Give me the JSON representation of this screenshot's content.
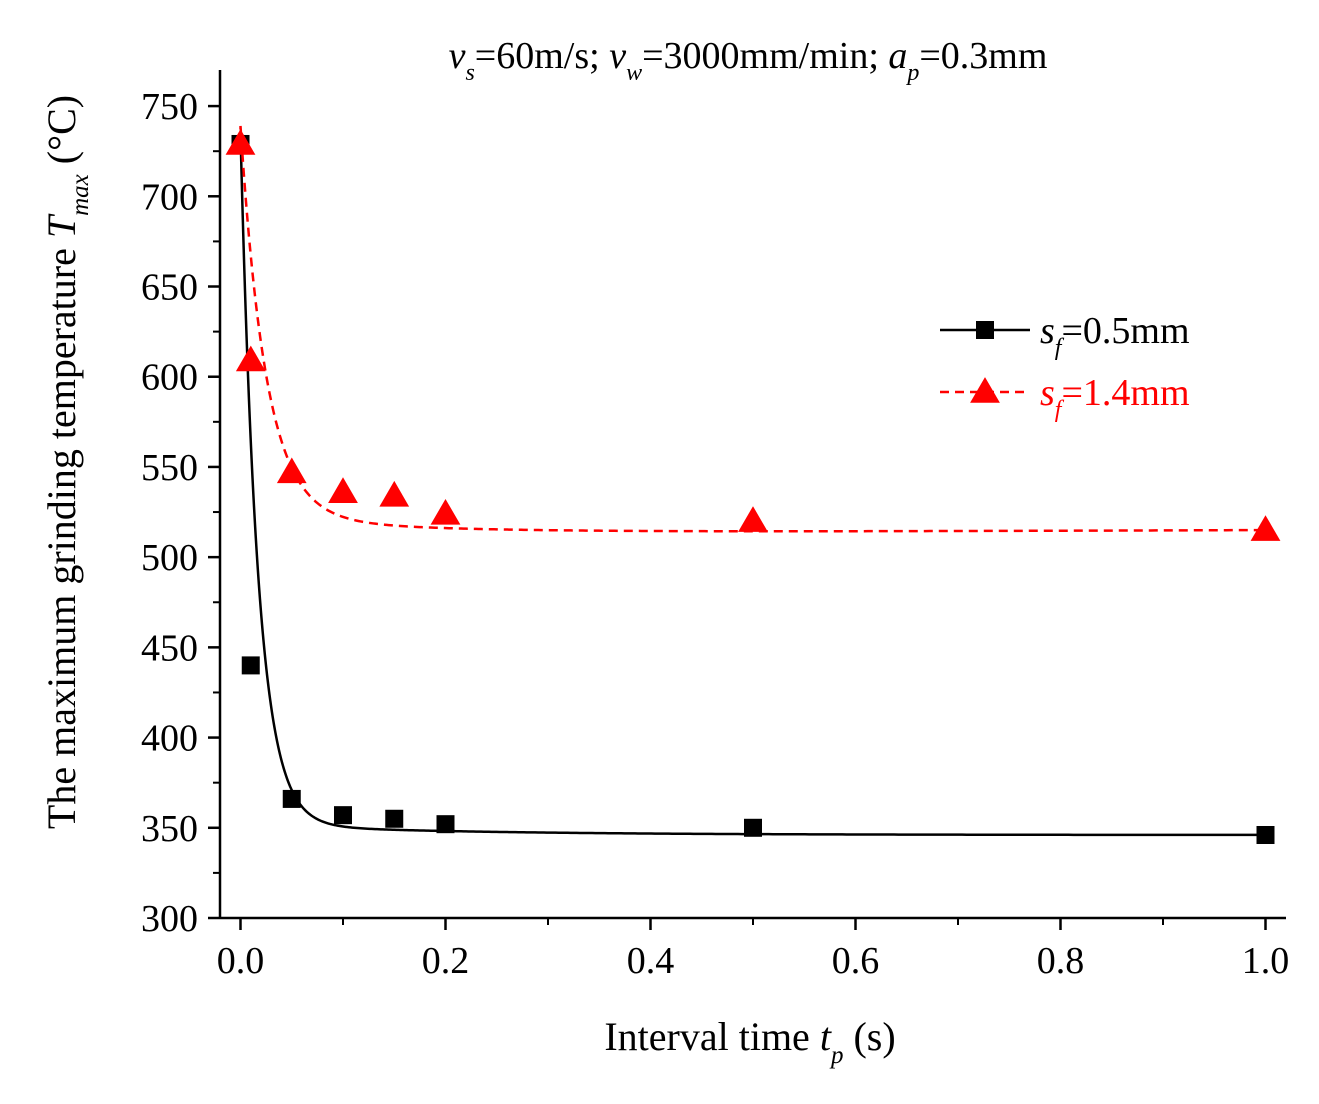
{
  "chart_data": {
    "type": "line",
    "title": {
      "parts": [
        {
          "text": "v",
          "italic": true
        },
        {
          "text": "s",
          "italic": true,
          "sub": true
        },
        {
          "text": "=60m/s; "
        },
        {
          "text": "v",
          "italic": true
        },
        {
          "text": "w",
          "italic": true,
          "sub": true
        },
        {
          "text": "=3000mm/min; "
        },
        {
          "text": "a",
          "italic": true
        },
        {
          "text": "p",
          "italic": true,
          "sub": true
        },
        {
          "text": "=0.3mm"
        }
      ]
    },
    "xlabel": {
      "parts": [
        {
          "text": "Interval time "
        },
        {
          "text": "t",
          "italic": true
        },
        {
          "text": "p",
          "italic": true,
          "sub": true
        },
        {
          "text": " (s)"
        }
      ]
    },
    "ylabel": {
      "parts": [
        {
          "text": "The maximum grinding temperature "
        },
        {
          "text": "T",
          "italic": true
        },
        {
          "text": "max",
          "italic": true,
          "sub": true
        },
        {
          "text": " (°C)"
        }
      ]
    },
    "xlim": [
      -0.02,
      1.02
    ],
    "ylim": [
      300,
      770
    ],
    "xticks": [
      0.0,
      0.2,
      0.4,
      0.6,
      0.8,
      1.0
    ],
    "xtick_labels": [
      "0.0",
      "0.2",
      "0.4",
      "0.6",
      "0.8",
      "1.0"
    ],
    "yticks": [
      300,
      350,
      400,
      450,
      500,
      550,
      600,
      650,
      700,
      750
    ],
    "ytick_labels": [
      "300",
      "350",
      "400",
      "450",
      "500",
      "550",
      "600",
      "650",
      "700",
      "750"
    ],
    "grid": false,
    "legend_position": "right",
    "series": [
      {
        "name": "sf=0.5mm",
        "label_parts": [
          {
            "text": "s",
            "italic": true
          },
          {
            "text": "f",
            "italic": true,
            "sub": true
          },
          {
            "text": "=0.5mm"
          }
        ],
        "color": "#000000",
        "marker": "square",
        "line_style": "solid",
        "x": [
          0,
          0.01,
          0.05,
          0.1,
          0.15,
          0.2,
          0.5,
          1.0
        ],
        "y": [
          729,
          440,
          366,
          357,
          355,
          352,
          350,
          346
        ],
        "fit": {
          "a": 346,
          "b": 383,
          "c": 0.017,
          "d": 0.0
        }
      },
      {
        "name": "sf=1.4mm",
        "label_parts": [
          {
            "text": "s",
            "italic": true
          },
          {
            "text": "f",
            "italic": true,
            "sub": true
          },
          {
            "text": "=1.4mm"
          }
        ],
        "color": "#ff0000",
        "marker": "triangle",
        "line_style": "dashed",
        "x": [
          0,
          0.01,
          0.05,
          0.1,
          0.15,
          0.2,
          0.5,
          1.0
        ],
        "y": [
          729,
          609,
          547,
          536,
          534,
          524,
          520,
          515
        ],
        "fit": {
          "a": 513,
          "b": 216,
          "c": 0.025,
          "d": 0.013
        }
      }
    ]
  }
}
